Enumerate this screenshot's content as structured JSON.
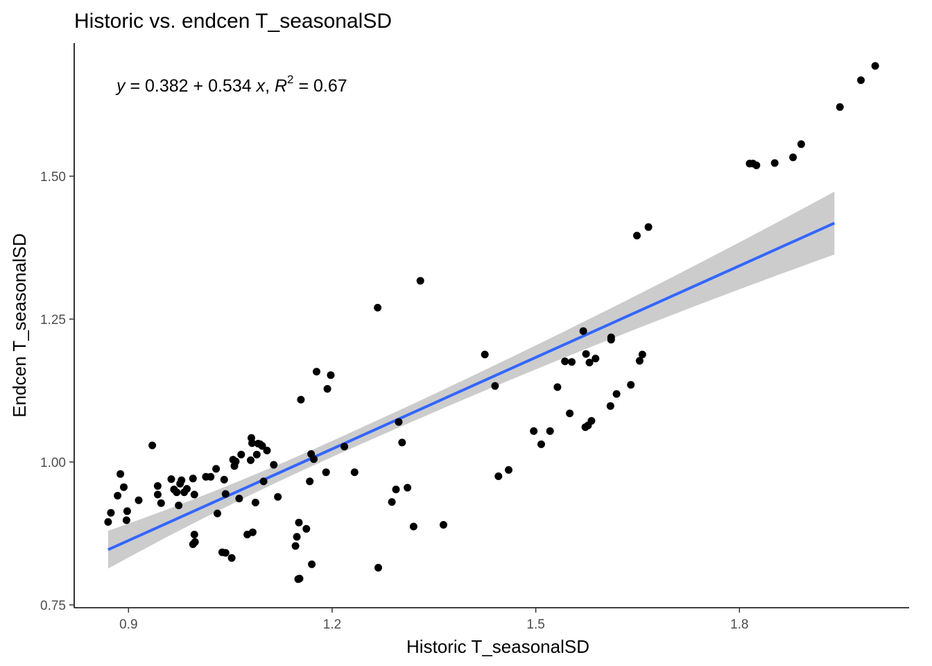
{
  "chart_data": {
    "type": "scatter",
    "title": "Historic vs. endcen T_seasonalSD",
    "xlabel": "Historic T_seasonalSD",
    "ylabel": "Endcen T_seasonalSD",
    "xlim": [
      0.82,
      2.05
    ],
    "ylim": [
      0.745,
      1.733
    ],
    "x_ticks": [
      0.9,
      1.2,
      1.5,
      1.8
    ],
    "x_tick_labels": [
      "0.9",
      "1.2",
      "1.5",
      "1.8"
    ],
    "y_ticks": [
      0.75,
      1.0,
      1.25,
      1.5
    ],
    "y_tick_labels": [
      "0.75",
      "1.00",
      "1.25",
      "1.50"
    ],
    "grid": false,
    "annotation": {
      "y_var": "y",
      "equals": " = ",
      "intercept": "0.382",
      "plus": " + ",
      "slope": "0.534",
      "x_var": "x",
      "comma": ",",
      "r_var": "R",
      "r_exp": "2",
      "r2_value": " = 0.67"
    },
    "fit": {
      "intercept": 0.382,
      "slope": 0.534,
      "x_range": [
        0.87,
        1.94
      ],
      "band_halfwidth_low": 0.033,
      "band_halfwidth_high": 0.055,
      "band_halfwidth_mid": 0.014,
      "x_center": 1.19,
      "line_color": "#3366ff",
      "band_color": "#cccccc"
    },
    "points_color": "#000000",
    "points": [
      [
        0.87,
        0.895
      ],
      [
        0.874,
        0.911
      ],
      [
        0.884,
        0.941
      ],
      [
        0.888,
        0.979
      ],
      [
        0.893,
        0.956
      ],
      [
        0.897,
        0.898
      ],
      [
        0.898,
        0.914
      ],
      [
        0.915,
        0.933
      ],
      [
        0.935,
        1.029
      ],
      [
        0.943,
        0.958
      ],
      [
        0.943,
        0.943
      ],
      [
        0.948,
        0.928
      ],
      [
        0.963,
        0.97
      ],
      [
        0.967,
        0.952
      ],
      [
        0.971,
        0.947
      ],
      [
        0.974,
        0.924
      ],
      [
        0.976,
        0.962
      ],
      [
        0.978,
        0.968
      ],
      [
        0.982,
        0.947
      ],
      [
        0.986,
        0.953
      ],
      [
        0.995,
        0.971
      ],
      [
        0.997,
        0.943
      ],
      [
        0.997,
        0.873
      ],
      [
        0.995,
        0.856
      ],
      [
        0.998,
        0.86
      ],
      [
        1.014,
        0.974
      ],
      [
        1.021,
        0.974
      ],
      [
        1.029,
        0.988
      ],
      [
        1.031,
        0.91
      ],
      [
        1.038,
        0.842
      ],
      [
        1.043,
        0.841
      ],
      [
        1.041,
        0.969
      ],
      [
        1.043,
        0.944
      ],
      [
        1.052,
        0.832
      ],
      [
        1.054,
        1.004
      ],
      [
        1.056,
        0.993
      ],
      [
        1.058,
        1.001
      ],
      [
        1.063,
        0.936
      ],
      [
        1.066,
        1.013
      ],
      [
        1.075,
        0.873
      ],
      [
        1.081,
        1.042
      ],
      [
        1.08,
        1.003
      ],
      [
        1.082,
        1.033
      ],
      [
        1.083,
        0.877
      ],
      [
        1.087,
        0.929
      ],
      [
        1.089,
        1.013
      ],
      [
        1.091,
        1.032
      ],
      [
        1.094,
        1.031
      ],
      [
        1.097,
        1.028
      ],
      [
        1.099,
        0.966
      ],
      [
        1.104,
        1.02
      ],
      [
        1.114,
        0.995
      ],
      [
        1.12,
        0.939
      ],
      [
        1.146,
        0.853
      ],
      [
        1.148,
        0.869
      ],
      [
        1.151,
        0.894
      ],
      [
        1.15,
        0.795
      ],
      [
        1.152,
        0.796
      ],
      [
        1.154,
        1.109
      ],
      [
        1.162,
        0.883
      ],
      [
        1.167,
        0.966
      ],
      [
        1.169,
        1.014
      ],
      [
        1.17,
        0.821
      ],
      [
        1.173,
        1.005
      ],
      [
        1.177,
        1.158
      ],
      [
        1.191,
        0.982
      ],
      [
        1.193,
        1.128
      ],
      [
        1.198,
        1.152
      ],
      [
        1.218,
        1.027
      ],
      [
        1.233,
        0.982
      ],
      [
        1.267,
        1.27
      ],
      [
        1.268,
        0.815
      ],
      [
        1.288,
        0.93
      ],
      [
        1.294,
        0.952
      ],
      [
        1.298,
        1.07
      ],
      [
        1.303,
        1.034
      ],
      [
        1.311,
        0.955
      ],
      [
        1.32,
        0.887
      ],
      [
        1.33,
        1.317
      ],
      [
        1.364,
        0.89
      ],
      [
        1.425,
        1.188
      ],
      [
        1.44,
        1.133
      ],
      [
        1.445,
        0.975
      ],
      [
        1.46,
        0.986
      ],
      [
        1.497,
        1.054
      ],
      [
        1.508,
        1.031
      ],
      [
        1.521,
        1.054
      ],
      [
        1.532,
        1.131
      ],
      [
        1.543,
        1.176
      ],
      [
        1.553,
        1.175
      ],
      [
        1.55,
        1.085
      ],
      [
        1.57,
        1.229
      ],
      [
        1.573,
        1.061
      ],
      [
        1.577,
        1.064
      ],
      [
        1.574,
        1.189
      ],
      [
        1.579,
        1.174
      ],
      [
        1.582,
        1.072
      ],
      [
        1.588,
        1.181
      ],
      [
        1.61,
        1.098
      ],
      [
        1.611,
        1.214
      ],
      [
        1.611,
        1.218
      ],
      [
        1.619,
        1.119
      ],
      [
        1.64,
        1.135
      ],
      [
        1.649,
        1.396
      ],
      [
        1.653,
        1.177
      ],
      [
        1.657,
        1.188
      ],
      [
        1.666,
        1.411
      ],
      [
        1.815,
        1.522
      ],
      [
        1.82,
        1.522
      ],
      [
        1.825,
        1.519
      ],
      [
        1.852,
        1.523
      ],
      [
        1.879,
        1.533
      ],
      [
        1.891,
        1.556
      ],
      [
        1.948,
        1.621
      ],
      [
        1.979,
        1.668
      ],
      [
        2.0,
        1.693
      ]
    ]
  }
}
